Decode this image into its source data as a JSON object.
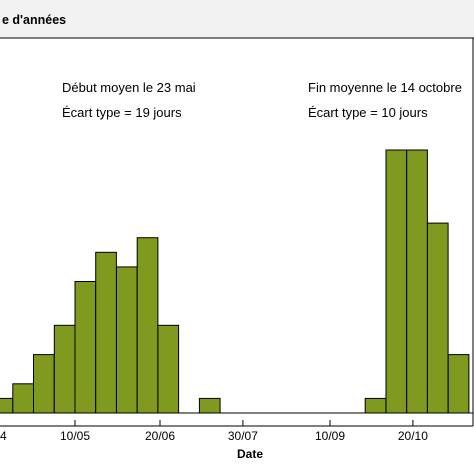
{
  "chart_data": {
    "type": "bar",
    "title": "e d'années",
    "xlabel": "Date",
    "ylabel": "",
    "x_tick_labels": [
      "4",
      "10/05",
      "20/06",
      "30/07",
      "10/09",
      "20/10"
    ],
    "annotations": {
      "start_mean": "Début moyen le 23 mai",
      "start_sd": "Écart type = 19 jours",
      "end_mean": "Fin moyenne le 14 octobre",
      "end_sd": "Écart type = 10 jours"
    },
    "bar_color": "#7f9a1f",
    "bins_start": [
      "Mar 31",
      "Apr 10",
      "Apr 20",
      "Apr 30",
      "May 10",
      "May 20",
      "May 30",
      "Jun 9",
      "Jun 19",
      "Jul 9",
      "Sep 27",
      "Oct 7",
      "Oct 17",
      "Oct 27",
      "Nov 6"
    ],
    "values": [
      1,
      2,
      4,
      6,
      9,
      11,
      10,
      12,
      6,
      1,
      1,
      18,
      18,
      13,
      4
    ],
    "ylim": [
      0,
      18
    ]
  }
}
